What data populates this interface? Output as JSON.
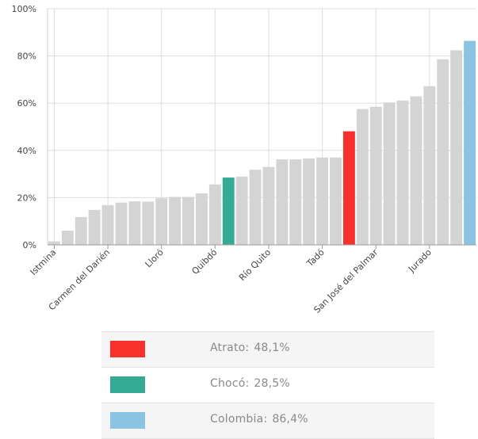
{
  "chart_data": {
    "type": "bar",
    "title": "",
    "xlabel": "",
    "ylabel": "",
    "ylim": [
      0,
      100
    ],
    "y_ticks": [
      "0%",
      "20%",
      "40%",
      "60%",
      "80%",
      "100%"
    ],
    "y_tick_values": [
      0,
      20,
      40,
      60,
      80,
      100
    ],
    "grid": true,
    "categories": [
      "Istmina",
      "",
      "",
      "",
      "Carmen del Darién",
      "",
      "",
      "",
      "Lloró",
      "",
      "",
      "",
      "Quibdó",
      "",
      "",
      "",
      "Río Quito",
      "",
      "",
      "",
      "Tadó",
      "",
      "",
      "",
      "San José del Palmar",
      "",
      "",
      "",
      "Jurado",
      "",
      "",
      ""
    ],
    "values": [
      1.5,
      6.0,
      11.8,
      14.8,
      16.8,
      17.9,
      18.4,
      18.3,
      19.7,
      20.3,
      20.3,
      21.8,
      25.6,
      28.5,
      28.9,
      31.8,
      33.0,
      36.2,
      36.2,
      36.6,
      37.0,
      37.0,
      48.1,
      57.5,
      58.5,
      60.3,
      61.1,
      62.9,
      67.2,
      78.6,
      82.4,
      86.4
    ],
    "bar_colors": {
      "default": "#d4d4d4",
      "Atrato": "#f7312c",
      "Chocó": "#35ab96",
      "Colombia": "#8bc4e2"
    },
    "highlight_index": {
      "Atrato": 22,
      "Chocó": 13,
      "Colombia": 31
    }
  },
  "legend": [
    {
      "name": "Atrato:",
      "value": "48,1%",
      "color": "#f7312c"
    },
    {
      "name": "Chocó:",
      "value": "28,5%",
      "color": "#35ab96"
    },
    {
      "name": "Colombia:",
      "value": "86,4%",
      "color": "#8bc4e2"
    }
  ]
}
